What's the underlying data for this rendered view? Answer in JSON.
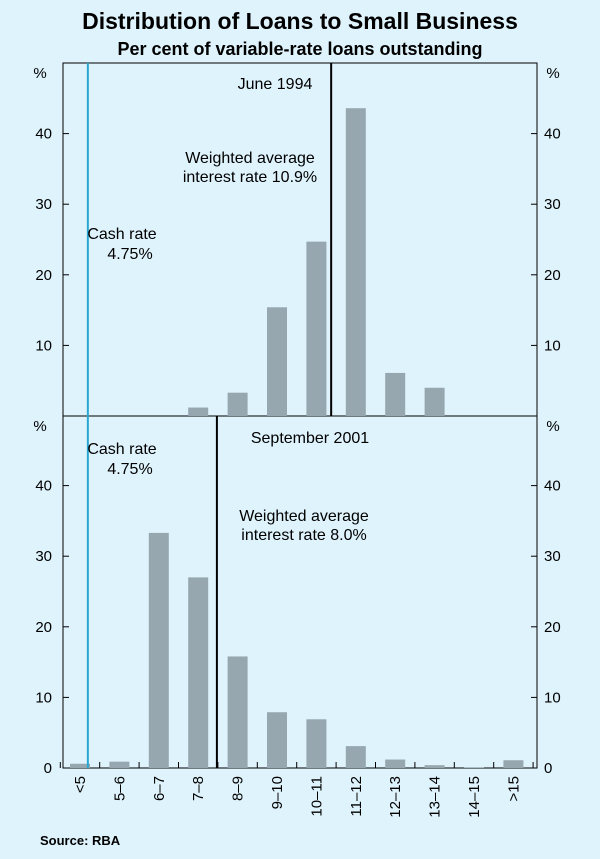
{
  "title": "Distribution of Loans to Small Business",
  "subtitle": "Per cent of variable-rate loans outstanding",
  "source": "Source: RBA",
  "colors": {
    "background": "#dff3fc",
    "bar": "#97a7b0",
    "cash_line": "#2aa7d0",
    "axis": "#000000"
  },
  "chart_data": {
    "type": "bar",
    "categories": [
      "<5",
      "5–6",
      "6–7",
      "7–8",
      "8–9",
      "9–10",
      "10–11",
      "11–12",
      "12–13",
      "13–14",
      "14–15",
      ">15"
    ],
    "ylim": [
      0,
      50
    ],
    "yticks": [
      10,
      20,
      30,
      40
    ],
    "bottom_yticks": [
      0,
      10,
      20,
      30,
      40
    ],
    "unit_label": "%",
    "panels": [
      {
        "name": "June 1994",
        "values": [
          0,
          0,
          0,
          1.2,
          3.3,
          15.4,
          24.7,
          43.6,
          6.1,
          4.0,
          0,
          0
        ],
        "weighted_average_rate": 10.9,
        "cash_rate": 4.75,
        "wavg_label_1": "Weighted average",
        "wavg_label_2": "interest rate 10.9%",
        "cash_label_1": "Cash rate",
        "cash_label_2": "4.75%"
      },
      {
        "name": "September 2001",
        "values": [
          0.6,
          0.9,
          33.3,
          27.0,
          15.8,
          7.9,
          6.9,
          3.1,
          1.2,
          0.4,
          0.1,
          1.1
        ],
        "weighted_average_rate": 8.0,
        "cash_rate": 4.75,
        "wavg_label_1": "Weighted average",
        "wavg_label_2": "interest rate 8.0%",
        "cash_label_1": "Cash rate",
        "cash_label_2": "4.75%"
      }
    ]
  }
}
